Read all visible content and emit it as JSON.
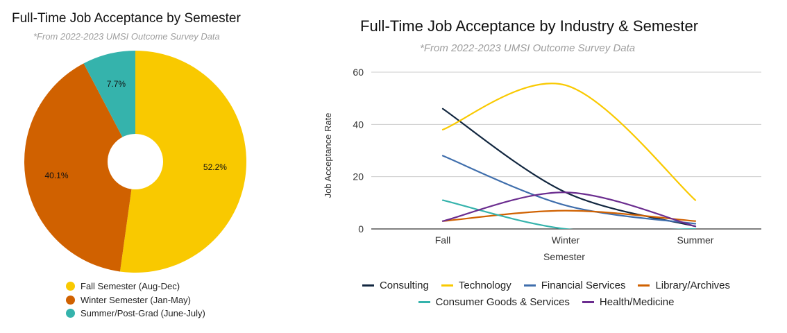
{
  "chart_data": [
    {
      "type": "pie",
      "title": "Full-Time Job Acceptance by Semester",
      "subtitle": "*From 2022-2023 UMSI Outcome Survey Data",
      "donut": true,
      "legend_position": "bottom",
      "slices": [
        {
          "label": "Fall Semester (Aug-Dec)",
          "value": 52.2,
          "value_label": "52.2%",
          "color": "#f9c900"
        },
        {
          "label": "Winter Semester (Jan-May)",
          "value": 40.1,
          "value_label": "40.1%",
          "color": "#d06100"
        },
        {
          "label": "Summer/Post-Grad (June-July)",
          "value": 7.7,
          "value_label": "7.7%",
          "color": "#35b3ac"
        }
      ]
    },
    {
      "type": "line",
      "title": "Full-Time Job Acceptance by Industry & Semester",
      "subtitle": "*From 2022-2023 UMSI Outcome Survey Data",
      "xlabel": "Semester",
      "ylabel": "Job Acceptance Rate",
      "categories": [
        "Fall",
        "Winter",
        "Summer"
      ],
      "ylim": [
        0,
        60
      ],
      "yticks": [
        0,
        20,
        40,
        60
      ],
      "grid": true,
      "smooth": true,
      "legend_position": "bottom",
      "series": [
        {
          "name": "Consulting",
          "values": [
            46,
            14,
            1
          ],
          "color": "#11263f"
        },
        {
          "name": "Technology",
          "values": [
            38,
            55,
            11
          ],
          "color": "#f9c900"
        },
        {
          "name": "Financial Services",
          "values": [
            28,
            9,
            2
          ],
          "color": "#3f6eac"
        },
        {
          "name": "Library/Archives",
          "values": [
            3,
            7,
            3
          ],
          "color": "#d06100"
        },
        {
          "name": "Consumer Goods & Services",
          "values": [
            11,
            0,
            0
          ],
          "color": "#35b3ac"
        },
        {
          "name": "Health/Medicine",
          "values": [
            3,
            14,
            1
          ],
          "color": "#6b2d8f"
        }
      ]
    }
  ]
}
